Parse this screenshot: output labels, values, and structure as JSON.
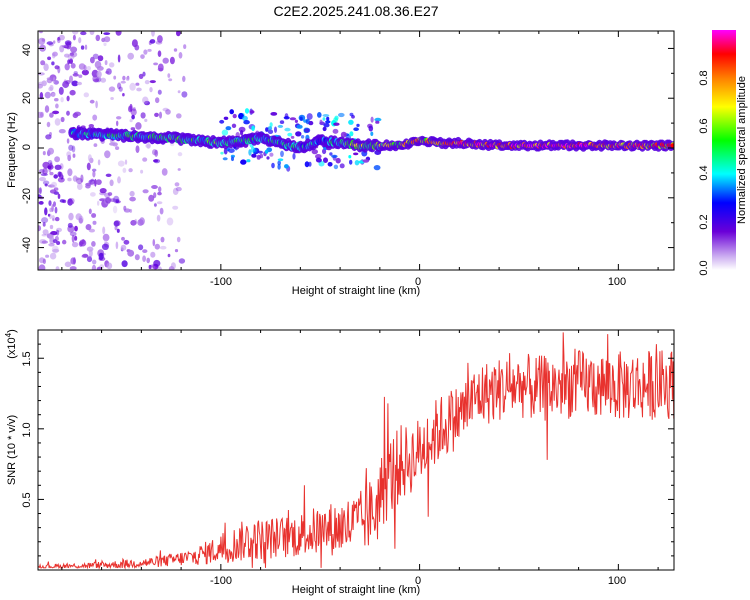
{
  "figure_title": "C2E2.2025.241.08.36.E27",
  "chart_data": [
    {
      "type": "heatmap",
      "title": "C2E2.2025.241.08.36.E27",
      "xlabel": "Height of straight line (km)",
      "ylabel": "Frequency (Hz)",
      "xlim": [
        -192,
        128
      ],
      "ylim": [
        -49,
        47
      ],
      "x_ticks": [
        -100,
        0,
        100
      ],
      "x_tick_labels": [
        "-100",
        "0",
        "100"
      ],
      "y_ticks": [
        -40,
        -20,
        0,
        20,
        40
      ],
      "y_tick_labels": [
        "-40",
        "-20",
        "0",
        "20",
        "40"
      ],
      "colorbar": {
        "label": "Normalized spectral amplitude",
        "range": [
          0,
          1
        ],
        "ticks": [
          0.0,
          0.2,
          0.4,
          0.6,
          0.8
        ],
        "tick_labels": [
          "0.0",
          "0.2",
          "0.4",
          "0.6",
          "0.8"
        ],
        "colormap": [
          "#ffffff",
          "#6a00d8",
          "#0000ff",
          "#00ffff",
          "#00ff00",
          "#ffff00",
          "#ff7f00",
          "#ff0000",
          "#ff00ff"
        ]
      },
      "ridge": {
        "x": [
          -175,
          -150,
          -125,
          -110,
          -100,
          -90,
          -80,
          -70,
          -60,
          -50,
          -40,
          -30,
          -20,
          -10,
          0,
          10,
          20,
          40,
          60,
          80,
          100,
          128
        ],
        "frequency": [
          6,
          5,
          4,
          3,
          2,
          3,
          4,
          2,
          0,
          3,
          2,
          1,
          1,
          1,
          3,
          2,
          2,
          1,
          1,
          1,
          1,
          1
        ],
        "amplitude": [
          0.35,
          0.45,
          0.5,
          0.45,
          0.55,
          0.4,
          0.45,
          0.4,
          0.4,
          0.35,
          0.45,
          0.6,
          0.6,
          0.7,
          0.75,
          0.7,
          0.85,
          0.9,
          0.92,
          0.9,
          0.85,
          0.8
        ]
      },
      "noise_region_x": [
        -192,
        -118
      ]
    },
    {
      "type": "line",
      "xlabel": "Height of straight line (km)",
      "ylabel": "SNR (10 * v/v)",
      "y_scale_label": "(x10",
      "y_scale_exponent": "4",
      "y_scale_suffix": ")",
      "xlim": [
        -192,
        128
      ],
      "ylim": [
        0,
        17000
      ],
      "x_ticks": [
        -100,
        0,
        100
      ],
      "x_tick_labels": [
        "-100",
        "0",
        "100"
      ],
      "y_ticks": [
        5000,
        10000,
        15000
      ],
      "y_tick_labels": [
        "0.5",
        "1.0",
        "1.5"
      ],
      "series": [
        {
          "name": "SNR",
          "color": "#e8322e",
          "x": [
            -192,
            -170,
            -150,
            -130,
            -115,
            -105,
            -95,
            -88,
            -80,
            -70,
            -60,
            -50,
            -40,
            -30,
            -22,
            -18,
            -10,
            -5,
            0,
            10,
            20,
            30,
            40,
            50,
            60,
            80,
            100,
            128
          ],
          "y": [
            250,
            300,
            400,
            600,
            900,
            1300,
            1700,
            2100,
            2200,
            2300,
            2500,
            2800,
            3000,
            3300,
            4300,
            6000,
            7500,
            7800,
            8400,
            10000,
            11000,
            12400,
            12800,
            13100,
            12800,
            13200,
            13000,
            13200
          ],
          "noise_amplitude": [
            150,
            200,
            300,
            400,
            600,
            900,
            1200,
            1500,
            1500,
            1500,
            1600,
            1800,
            2000,
            2300,
            2700,
            3000,
            2800,
            2500,
            2500,
            2400,
            2300,
            2300,
            2300,
            2300,
            2400,
            2400,
            2500,
            2500
          ]
        }
      ]
    }
  ]
}
